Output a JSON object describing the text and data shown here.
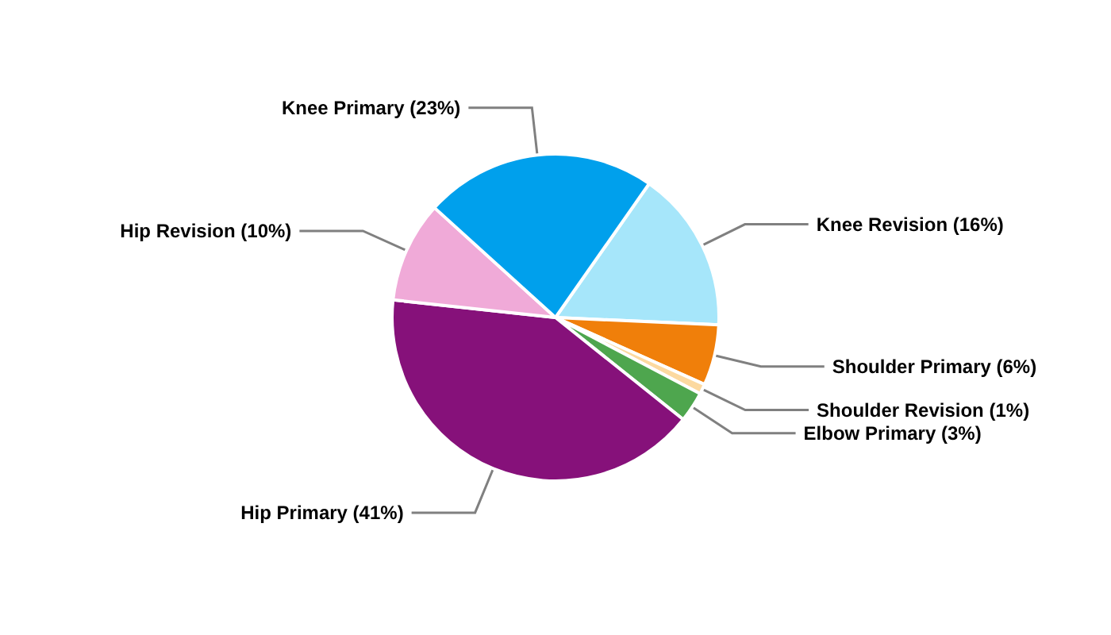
{
  "chart_data": {
    "type": "pie",
    "categories": [
      "Knee Revision",
      "Shoulder Primary",
      "Shoulder Revision",
      "Elbow Primary",
      "Hip Primary",
      "Hip Revision",
      "Knee Primary"
    ],
    "values": [
      16,
      6,
      1,
      3,
      41,
      10,
      23
    ],
    "value_labels": [
      "(16%)",
      "(6%)",
      "(1%)",
      "(3%)",
      "(41%)",
      "(10%)",
      "(23%)"
    ],
    "colors": [
      "#a6e6fa",
      "#f07f0a",
      "#fcd9a0",
      "#4ea64e",
      "#86117a",
      "#f0aad8",
      "#00a0ec"
    ],
    "legend": false
  }
}
